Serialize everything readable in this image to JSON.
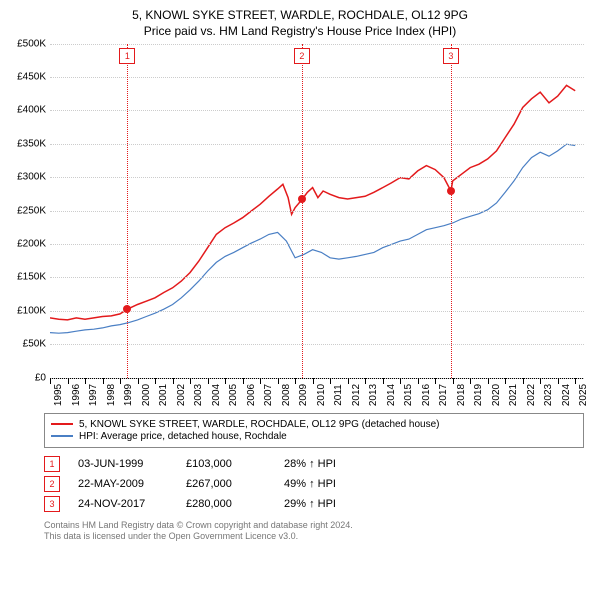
{
  "title_line1": "5, KNOWL SYKE STREET, WARDLE, ROCHDALE, OL12 9PG",
  "title_line2": "Price paid vs. HM Land Registry's House Price Index (HPI)",
  "chart": {
    "type": "line",
    "ylim": [
      0,
      500000
    ],
    "ytick_step": 50000,
    "ytick_labels": [
      "£0",
      "£50K",
      "£100K",
      "£150K",
      "£200K",
      "£250K",
      "£300K",
      "£350K",
      "£400K",
      "£450K",
      "£500K"
    ],
    "xlim": [
      1995,
      2025.5
    ],
    "xticks": [
      1995,
      1996,
      1997,
      1998,
      1999,
      2000,
      2001,
      2002,
      2003,
      2004,
      2005,
      2006,
      2007,
      2008,
      2009,
      2010,
      2011,
      2012,
      2013,
      2014,
      2015,
      2016,
      2017,
      2018,
      2019,
      2020,
      2021,
      2022,
      2023,
      2024,
      2025
    ],
    "grid_color": "#cccccc",
    "background_color": "#ffffff",
    "series": [
      {
        "name": "property",
        "label": "5, KNOWL SYKE STREET, WARDLE, ROCHDALE, OL12 9PG (detached house)",
        "color": "#e31a1c",
        "line_width": 1.5,
        "data": [
          [
            1995,
            90000
          ],
          [
            1995.5,
            88000
          ],
          [
            1996,
            87000
          ],
          [
            1996.5,
            90000
          ],
          [
            1997,
            88000
          ],
          [
            1997.5,
            90000
          ],
          [
            1998,
            92000
          ],
          [
            1998.5,
            93000
          ],
          [
            1999,
            96000
          ],
          [
            1999.42,
            103000
          ],
          [
            2000,
            110000
          ],
          [
            2000.5,
            115000
          ],
          [
            2001,
            120000
          ],
          [
            2001.5,
            128000
          ],
          [
            2002,
            135000
          ],
          [
            2002.5,
            145000
          ],
          [
            2003,
            158000
          ],
          [
            2003.5,
            175000
          ],
          [
            2004,
            195000
          ],
          [
            2004.5,
            215000
          ],
          [
            2005,
            225000
          ],
          [
            2005.5,
            232000
          ],
          [
            2006,
            240000
          ],
          [
            2006.5,
            250000
          ],
          [
            2007,
            260000
          ],
          [
            2007.5,
            272000
          ],
          [
            2008,
            283000
          ],
          [
            2008.3,
            290000
          ],
          [
            2008.6,
            270000
          ],
          [
            2008.8,
            245000
          ],
          [
            2009,
            255000
          ],
          [
            2009.39,
            267000
          ],
          [
            2009.7,
            278000
          ],
          [
            2010,
            285000
          ],
          [
            2010.3,
            270000
          ],
          [
            2010.6,
            280000
          ],
          [
            2011,
            275000
          ],
          [
            2011.5,
            270000
          ],
          [
            2012,
            268000
          ],
          [
            2012.5,
            270000
          ],
          [
            2013,
            272000
          ],
          [
            2013.5,
            278000
          ],
          [
            2014,
            285000
          ],
          [
            2014.5,
            292000
          ],
          [
            2015,
            300000
          ],
          [
            2015.5,
            298000
          ],
          [
            2016,
            310000
          ],
          [
            2016.5,
            318000
          ],
          [
            2017,
            312000
          ],
          [
            2017.5,
            300000
          ],
          [
            2017.9,
            280000
          ],
          [
            2018,
            295000
          ],
          [
            2018.5,
            305000
          ],
          [
            2019,
            315000
          ],
          [
            2019.5,
            320000
          ],
          [
            2020,
            328000
          ],
          [
            2020.5,
            340000
          ],
          [
            2021,
            360000
          ],
          [
            2021.5,
            380000
          ],
          [
            2022,
            405000
          ],
          [
            2022.5,
            418000
          ],
          [
            2023,
            428000
          ],
          [
            2023.5,
            412000
          ],
          [
            2024,
            422000
          ],
          [
            2024.5,
            438000
          ],
          [
            2025,
            430000
          ]
        ]
      },
      {
        "name": "hpi",
        "label": "HPI: Average price, detached house, Rochdale",
        "color": "#4a7fc4",
        "line_width": 1.2,
        "data": [
          [
            1995,
            68000
          ],
          [
            1995.5,
            67000
          ],
          [
            1996,
            68000
          ],
          [
            1996.5,
            70000
          ],
          [
            1997,
            72000
          ],
          [
            1997.5,
            73000
          ],
          [
            1998,
            75000
          ],
          [
            1998.5,
            78000
          ],
          [
            1999,
            80000
          ],
          [
            1999.5,
            83000
          ],
          [
            2000,
            87000
          ],
          [
            2000.5,
            92000
          ],
          [
            2001,
            97000
          ],
          [
            2001.5,
            103000
          ],
          [
            2002,
            110000
          ],
          [
            2002.5,
            120000
          ],
          [
            2003,
            132000
          ],
          [
            2003.5,
            145000
          ],
          [
            2004,
            160000
          ],
          [
            2004.5,
            173000
          ],
          [
            2005,
            182000
          ],
          [
            2005.5,
            188000
          ],
          [
            2006,
            195000
          ],
          [
            2006.5,
            202000
          ],
          [
            2007,
            208000
          ],
          [
            2007.5,
            215000
          ],
          [
            2008,
            218000
          ],
          [
            2008.5,
            205000
          ],
          [
            2009,
            180000
          ],
          [
            2009.5,
            185000
          ],
          [
            2010,
            192000
          ],
          [
            2010.5,
            188000
          ],
          [
            2011,
            180000
          ],
          [
            2011.5,
            178000
          ],
          [
            2012,
            180000
          ],
          [
            2012.5,
            182000
          ],
          [
            2013,
            185000
          ],
          [
            2013.5,
            188000
          ],
          [
            2014,
            195000
          ],
          [
            2014.5,
            200000
          ],
          [
            2015,
            205000
          ],
          [
            2015.5,
            208000
          ],
          [
            2016,
            215000
          ],
          [
            2016.5,
            222000
          ],
          [
            2017,
            225000
          ],
          [
            2017.5,
            228000
          ],
          [
            2018,
            232000
          ],
          [
            2018.5,
            238000
          ],
          [
            2019,
            242000
          ],
          [
            2019.5,
            246000
          ],
          [
            2020,
            252000
          ],
          [
            2020.5,
            262000
          ],
          [
            2021,
            278000
          ],
          [
            2021.5,
            295000
          ],
          [
            2022,
            315000
          ],
          [
            2022.5,
            330000
          ],
          [
            2023,
            338000
          ],
          [
            2023.5,
            332000
          ],
          [
            2024,
            340000
          ],
          [
            2024.5,
            350000
          ],
          [
            2025,
            348000
          ]
        ]
      }
    ],
    "sale_markers": [
      {
        "n": "1",
        "x": 1999.42,
        "y": 103000,
        "color": "#e31a1c"
      },
      {
        "n": "2",
        "x": 2009.39,
        "y": 267000,
        "color": "#e31a1c"
      },
      {
        "n": "3",
        "x": 2017.9,
        "y": 280000,
        "color": "#e31a1c"
      }
    ],
    "marker_dot_color": "#e31a1c",
    "marker_line_color": "#e31a1c"
  },
  "legend": {
    "items": [
      {
        "color": "#e31a1c",
        "label": "5, KNOWL SYKE STREET, WARDLE, ROCHDALE, OL12 9PG (detached house)"
      },
      {
        "color": "#4a7fc4",
        "label": "HPI: Average price, detached house, Rochdale"
      }
    ]
  },
  "sales_table": {
    "badge_color": "#e31a1c",
    "rows": [
      {
        "n": "1",
        "date": "03-JUN-1999",
        "price": "£103,000",
        "diff": "28% ↑ HPI"
      },
      {
        "n": "2",
        "date": "22-MAY-2009",
        "price": "£267,000",
        "diff": "49% ↑ HPI"
      },
      {
        "n": "3",
        "date": "24-NOV-2017",
        "price": "£280,000",
        "diff": "29% ↑ HPI"
      }
    ]
  },
  "footer": {
    "line1": "Contains HM Land Registry data © Crown copyright and database right 2024.",
    "line2": "This data is licensed under the Open Government Licence v3.0."
  }
}
